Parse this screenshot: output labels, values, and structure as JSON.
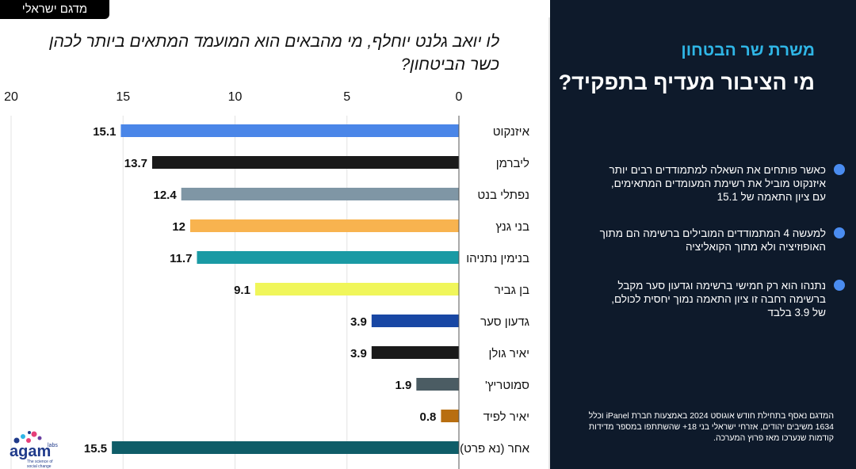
{
  "badge": "מדגם ישראלי",
  "panel": {
    "subtitle": "משרת שר הבטחון",
    "headline": "מי הציבור מעדיף בתפקיד?",
    "bullets": [
      "כאשר פותחים את השאלה למתמודדים רבים יותר איזנקוט מוביל את רשימת המעומדים המתאימים, עם ציון התאמה של 15.1",
      "למעשה 4 המתמודדים המובילים ברשימה הם מתוך האופוזיציה ולא מתוך הקואליציה",
      "נתנהו הוא רק חמישי ברשימה וגדעון סער מקבל ברשימה רחבה זו ציון התאמה נמוך יחסית לכולם, של 3.9 בלבד"
    ],
    "footnote": "המדגם נאסף בתחילת חודש אוגוסט 2024 באמצעות חברת iPanel וכלל 1634 משיבים יהודים, אזרחי ישראלי בני 18+ שהשתתפו במספר מדידות קודמות שנערכו מאז פרוץ המערכה."
  },
  "logo": {
    "name": "agam",
    "labs": "labs",
    "tagline": "The science of social change"
  },
  "colors": {
    "panel_bg": "#0e1a2b",
    "accent": "#2fb6e6",
    "bullet_dot": "#4a8cf0"
  },
  "chart_data": {
    "type": "bar",
    "orientation": "horizontal",
    "title": "לו יואב גלנט יוחלף, מי מהבאים הוא המועמד המתאים ביותר לכהן כשר הביטחון?",
    "categories": [
      "איזנקוט",
      "ליברמן",
      "נפתלי בנט",
      "בני גנץ",
      "בנימין נתניהו",
      "בן גביר",
      "גדעון סער",
      "יאיר גולן",
      "סמוטריץ'",
      "יאיר לפיד",
      "אחר (נא פרט)"
    ],
    "values": [
      15.1,
      13.7,
      12.4,
      12,
      11.7,
      9.1,
      3.9,
      3.9,
      1.9,
      0.8,
      15.5
    ],
    "value_labels": [
      "15.1",
      "13.7",
      "12.4",
      "12",
      "11.7",
      "9.1",
      "3.9",
      "3.9",
      "1.9",
      "0.8",
      "15.5"
    ],
    "bar_colors": [
      "#4a86e8",
      "#1a1a1a",
      "#7f96a5",
      "#f8b34f",
      "#1a9aa4",
      "#f0f65a",
      "#1847a4",
      "#1a1a1a",
      "#4b5c63",
      "#b86e10",
      "#0f5d68"
    ],
    "xlim": [
      0,
      20
    ],
    "ticks": [
      0,
      5,
      10,
      15,
      20
    ],
    "tick_labels": [
      "0",
      "5",
      "10",
      "15",
      "20"
    ],
    "x_direction": "right-to-left",
    "grid": true
  }
}
